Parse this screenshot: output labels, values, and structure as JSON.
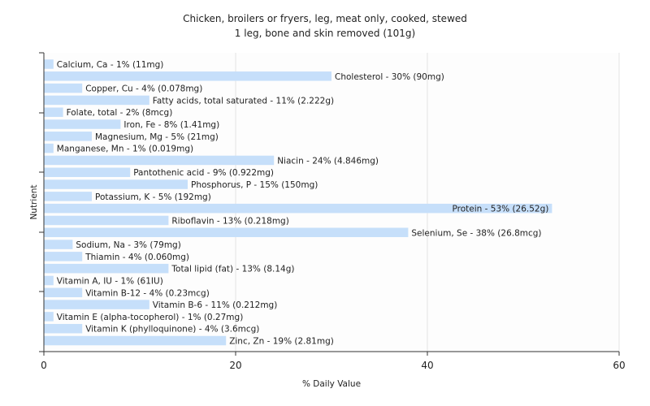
{
  "chart_data": {
    "type": "bar",
    "orientation": "horizontal",
    "title": "Chicken, broilers or fryers, leg, meat only, cooked, stewed",
    "subtitle": "1 leg, bone and skin removed (101g)",
    "xlabel": "% Daily Value",
    "ylabel": "Nutrient",
    "xlim": [
      0,
      60
    ],
    "xticks": [
      "0",
      "20",
      "40",
      "60"
    ],
    "grid": true,
    "bar_color": "#c6dffa",
    "categories": [
      "Calcium, Ca",
      "Cholesterol",
      "Copper, Cu",
      "Fatty acids, total saturated",
      "Folate, total",
      "Iron, Fe",
      "Magnesium, Mg",
      "Manganese, Mn",
      "Niacin",
      "Pantothenic acid",
      "Phosphorus, P",
      "Potassium, K",
      "Protein",
      "Riboflavin",
      "Selenium, Se",
      "Sodium, Na",
      "Thiamin",
      "Total lipid (fat)",
      "Vitamin A, IU",
      "Vitamin B-12",
      "Vitamin B-6",
      "Vitamin E (alpha-tocopherol)",
      "Vitamin K (phylloquinone)",
      "Zinc, Zn"
    ],
    "values": [
      1,
      30,
      4,
      11,
      2,
      8,
      5,
      1,
      24,
      9,
      15,
      5,
      53,
      13,
      38,
      3,
      4,
      13,
      1,
      4,
      11,
      1,
      4,
      19
    ],
    "labels": [
      "Calcium, Ca - 1% (11mg)",
      "Cholesterol - 30% (90mg)",
      "Copper, Cu - 4% (0.078mg)",
      "Fatty acids, total saturated - 11% (2.222g)",
      "Folate, total - 2% (8mcg)",
      "Iron, Fe - 8% (1.41mg)",
      "Magnesium, Mg - 5% (21mg)",
      "Manganese, Mn - 1% (0.019mg)",
      "Niacin - 24% (4.846mg)",
      "Pantothenic acid - 9% (0.922mg)",
      "Phosphorus, P - 15% (150mg)",
      "Potassium, K - 5% (192mg)",
      "Protein - 53% (26.52g)",
      "Riboflavin - 13% (0.218mg)",
      "Selenium, Se - 38% (26.8mcg)",
      "Sodium, Na - 3% (79mg)",
      "Thiamin - 4% (0.060mg)",
      "Total lipid (fat) - 13% (8.14g)",
      "Vitamin A, IU - 1% (61IU)",
      "Vitamin B-12 - 4% (0.23mcg)",
      "Vitamin B-6 - 11% (0.212mg)",
      "Vitamin E (alpha-tocopherol) - 1% (0.27mg)",
      "Vitamin K (phylloquinone) - 4% (3.6mcg)",
      "Zinc, Zn - 19% (2.81mg)"
    ]
  }
}
